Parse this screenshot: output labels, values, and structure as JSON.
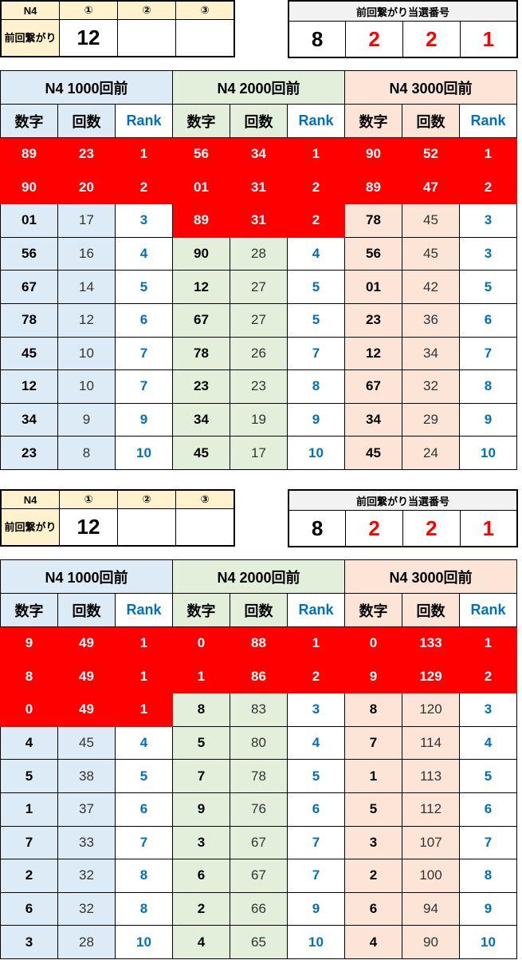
{
  "blocks": [
    {
      "prev": {
        "header": [
          "N4",
          "①",
          "②",
          "③"
        ],
        "label": "前回繋がり",
        "values": [
          "12",
          "",
          ""
        ]
      },
      "winning": {
        "title": "前回繋がり当選番号",
        "digits": [
          {
            "v": "8",
            "color": "#000000"
          },
          {
            "v": "2",
            "color": "#ff0000"
          },
          {
            "v": "2",
            "color": "#ff0000"
          },
          {
            "v": "1",
            "color": "#ff0000"
          }
        ]
      },
      "groups": [
        {
          "title": "N4 1000回前",
          "cols": [
            "数字",
            "回数",
            "Rank"
          ],
          "rows": [
            [
              "89",
              "23",
              "1",
              true
            ],
            [
              "90",
              "20",
              "2",
              true
            ],
            [
              "01",
              "17",
              "3",
              false
            ],
            [
              "56",
              "16",
              "4",
              false
            ],
            [
              "67",
              "14",
              "5",
              false
            ],
            [
              "78",
              "12",
              "6",
              false
            ],
            [
              "45",
              "10",
              "7",
              false
            ],
            [
              "12",
              "10",
              "7",
              false
            ],
            [
              "34",
              "9",
              "9",
              false
            ],
            [
              "23",
              "8",
              "10",
              false
            ]
          ]
        },
        {
          "title": "N4 2000回前",
          "cols": [
            "数字",
            "回数",
            "Rank"
          ],
          "rows": [
            [
              "56",
              "34",
              "1",
              true
            ],
            [
              "01",
              "31",
              "2",
              true
            ],
            [
              "89",
              "31",
              "2",
              true
            ],
            [
              "90",
              "28",
              "4",
              false
            ],
            [
              "12",
              "27",
              "5",
              false
            ],
            [
              "67",
              "27",
              "5",
              false
            ],
            [
              "78",
              "26",
              "7",
              false
            ],
            [
              "23",
              "23",
              "8",
              false
            ],
            [
              "34",
              "19",
              "9",
              false
            ],
            [
              "45",
              "17",
              "10",
              false
            ]
          ]
        },
        {
          "title": "N4 3000回前",
          "cols": [
            "数字",
            "回数",
            "Rank"
          ],
          "rows": [
            [
              "90",
              "52",
              "1",
              true
            ],
            [
              "89",
              "47",
              "2",
              true
            ],
            [
              "78",
              "45",
              "3",
              false
            ],
            [
              "56",
              "45",
              "3",
              false
            ],
            [
              "01",
              "42",
              "5",
              false
            ],
            [
              "23",
              "36",
              "6",
              false
            ],
            [
              "12",
              "34",
              "7",
              false
            ],
            [
              "67",
              "32",
              "8",
              false
            ],
            [
              "34",
              "29",
              "9",
              false
            ],
            [
              "45",
              "24",
              "10",
              false
            ]
          ]
        }
      ]
    },
    {
      "prev": {
        "header": [
          "N4",
          "①",
          "②",
          "③"
        ],
        "label": "前回繋がり",
        "values": [
          "12",
          "",
          ""
        ]
      },
      "winning": {
        "title": "前回繋がり当選番号",
        "digits": [
          {
            "v": "8",
            "color": "#000000"
          },
          {
            "v": "2",
            "color": "#ff0000"
          },
          {
            "v": "2",
            "color": "#ff0000"
          },
          {
            "v": "1",
            "color": "#ff0000"
          }
        ]
      },
      "groups": [
        {
          "title": "N4 1000回前",
          "cols": [
            "数字",
            "回数",
            "Rank"
          ],
          "rows": [
            [
              "9",
              "49",
              "1",
              true
            ],
            [
              "8",
              "49",
              "1",
              true
            ],
            [
              "0",
              "49",
              "1",
              true
            ],
            [
              "4",
              "45",
              "4",
              false
            ],
            [
              "5",
              "38",
              "5",
              false
            ],
            [
              "1",
              "37",
              "6",
              false
            ],
            [
              "7",
              "33",
              "7",
              false
            ],
            [
              "2",
              "32",
              "8",
              false
            ],
            [
              "6",
              "32",
              "8",
              false
            ],
            [
              "3",
              "28",
              "10",
              false
            ]
          ]
        },
        {
          "title": "N4 2000回前",
          "cols": [
            "数字",
            "回数",
            "Rank"
          ],
          "rows": [
            [
              "0",
              "88",
              "1",
              true
            ],
            [
              "1",
              "86",
              "2",
              true
            ],
            [
              "8",
              "83",
              "3",
              false
            ],
            [
              "5",
              "80",
              "4",
              false
            ],
            [
              "7",
              "78",
              "5",
              false
            ],
            [
              "9",
              "76",
              "6",
              false
            ],
            [
              "3",
              "67",
              "7",
              false
            ],
            [
              "6",
              "67",
              "7",
              false
            ],
            [
              "2",
              "66",
              "9",
              false
            ],
            [
              "4",
              "65",
              "10",
              false
            ]
          ]
        },
        {
          "title": "N4 3000回前",
          "cols": [
            "数字",
            "回数",
            "Rank"
          ],
          "rows": [
            [
              "0",
              "133",
              "1",
              true
            ],
            [
              "9",
              "129",
              "2",
              true
            ],
            [
              "8",
              "120",
              "3",
              false
            ],
            [
              "7",
              "114",
              "4",
              false
            ],
            [
              "1",
              "113",
              "5",
              false
            ],
            [
              "5",
              "112",
              "6",
              false
            ],
            [
              "3",
              "107",
              "7",
              false
            ],
            [
              "2",
              "100",
              "8",
              false
            ],
            [
              "6",
              "94",
              "9",
              false
            ],
            [
              "4",
              "90",
              "10",
              false
            ]
          ]
        }
      ]
    }
  ]
}
